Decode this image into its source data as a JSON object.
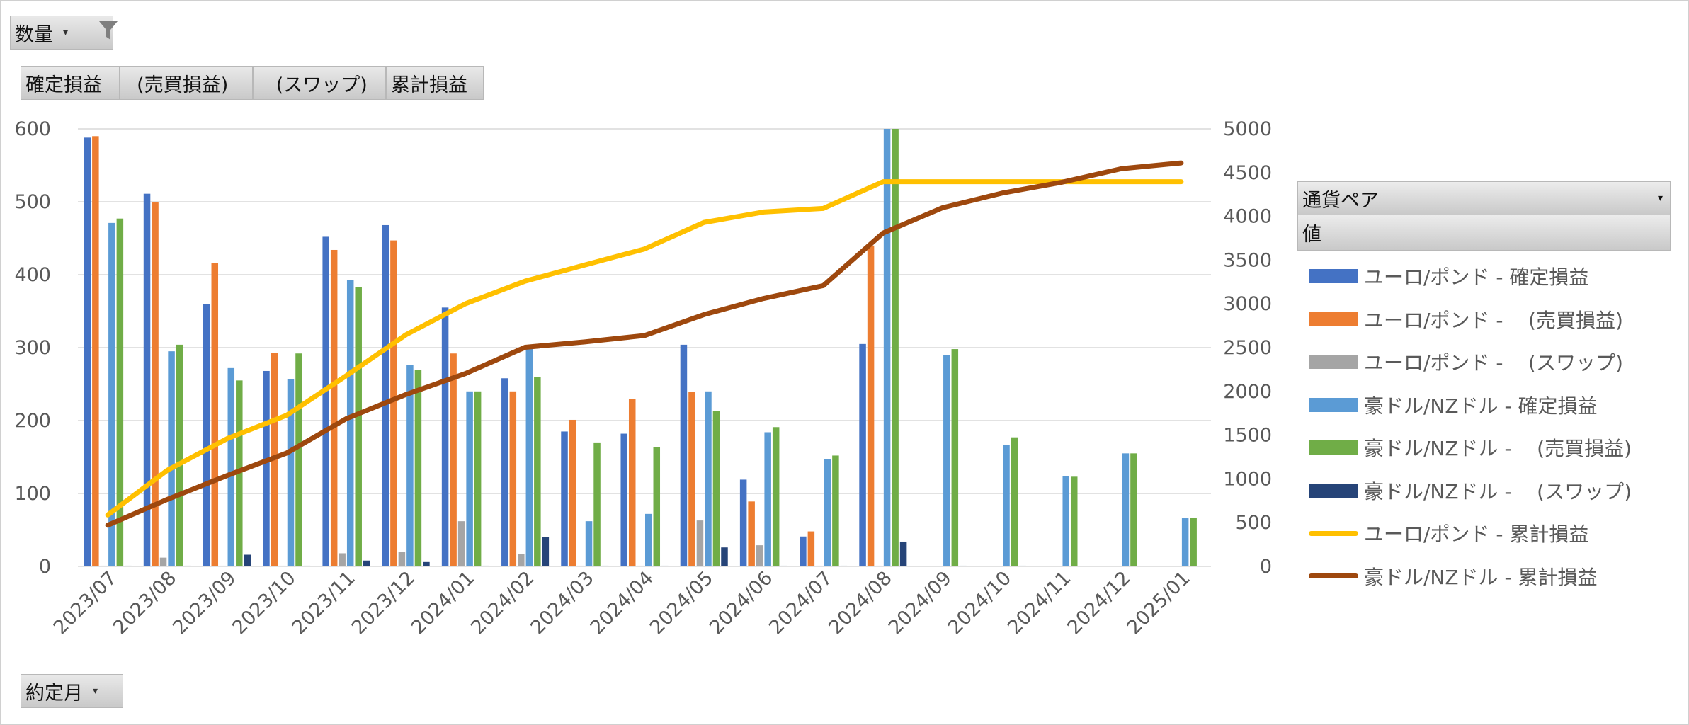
{
  "pivot": {
    "value_field": "数量",
    "column_fields": [
      "確定損益",
      "  (売買損益)",
      "   (スワップ)",
      "累計損益"
    ],
    "series_field": "通貨ペア",
    "values_label": "値",
    "axis_field": "約定月"
  },
  "icons": {
    "filter": "filter-icon",
    "dropdown": "chevron-down-icon"
  },
  "chart_data": {
    "type": "bar",
    "categories": [
      "2023/07",
      "2023/08",
      "2023/09",
      "2023/10",
      "2023/11",
      "2023/12",
      "2024/01",
      "2024/02",
      "2024/03",
      "2024/04",
      "2024/05",
      "2024/06",
      "2024/07",
      "2024/08",
      "2024/09",
      "2024/10",
      "2024/11",
      "2024/12",
      "2025/01"
    ],
    "y_left": {
      "min": 0,
      "max": 600,
      "ticks": [
        "0",
        "100",
        "200",
        "300",
        "400",
        "500",
        "600"
      ]
    },
    "y_right": {
      "min": 0,
      "max": 5000,
      "ticks": [
        "0",
        "500",
        "1000",
        "1500",
        "2000",
        "2500",
        "3000",
        "3500",
        "4000",
        "4500",
        "5000"
      ]
    },
    "grid": true,
    "legend_position": "right",
    "series": [
      {
        "name": "ユーロ/ポンド - 確定損益",
        "kind": "bar",
        "axis": "left",
        "color": "#4472C4",
        "values": [
          588,
          511,
          360,
          268,
          452,
          468,
          355,
          258,
          185,
          182,
          304,
          119,
          41,
          305,
          null,
          null,
          null,
          null,
          null
        ]
      },
      {
        "name": "ユーロ/ポンド -    (売買損益)",
        "kind": "bar",
        "axis": "left",
        "color": "#ED7D31",
        "values": [
          590,
          499,
          416,
          293,
          434,
          447,
          292,
          240,
          201,
          230,
          239,
          89,
          48,
          440,
          null,
          null,
          null,
          null,
          null
        ]
      },
      {
        "name": "ユーロ/ポンド -    (スワップ)",
        "kind": "bar",
        "axis": "left",
        "color": "#A5A5A5",
        "values": [
          1,
          12,
          1,
          1,
          18,
          20,
          62,
          17,
          1,
          1,
          63,
          29,
          1,
          1,
          null,
          null,
          null,
          null,
          null
        ]
      },
      {
        "name": "豪ドル/NZドル - 確定損益",
        "kind": "bar",
        "axis": "left",
        "color": "#5B9BD5",
        "values": [
          471,
          295,
          272,
          257,
          393,
          276,
          240,
          300,
          62,
          72,
          240,
          184,
          147,
          600,
          290,
          167,
          124,
          155,
          66
        ]
      },
      {
        "name": "豪ドル/NZドル -    (売買損益)",
        "kind": "bar",
        "axis": "left",
        "color": "#70AD47",
        "values": [
          477,
          304,
          255,
          292,
          383,
          269,
          240,
          260,
          170,
          164,
          213,
          191,
          152,
          600,
          298,
          177,
          123,
          155,
          67
        ]
      },
      {
        "name": "豪ドル/NZドル -    (スワップ)",
        "kind": "bar",
        "axis": "left",
        "color": "#264478",
        "values": [
          1,
          1,
          16,
          1,
          8,
          6,
          1,
          40,
          1,
          1,
          26,
          1,
          1,
          34,
          1,
          1,
          null,
          null,
          null
        ]
      },
      {
        "name": "ユーロ/ポンド - 累計損益",
        "kind": "line",
        "axis": "right",
        "color": "#FFC000",
        "values": [
          588,
          1099,
          1459,
          1727,
          2179,
          2647,
          3002,
          3260,
          3445,
          3627,
          3931,
          4050,
          4091,
          4396,
          4396,
          4396,
          4396,
          4396,
          4396
        ]
      },
      {
        "name": "豪ドル/NZドル - 累計損益",
        "kind": "line",
        "axis": "right",
        "color": "#9E480E",
        "values": [
          471,
          766,
          1038,
          1295,
          1688,
          1964,
          2204,
          2504,
          2566,
          2638,
          2878,
          3062,
          3209,
          3809,
          4099,
          4266,
          4390,
          4545,
          4611
        ]
      }
    ]
  }
}
